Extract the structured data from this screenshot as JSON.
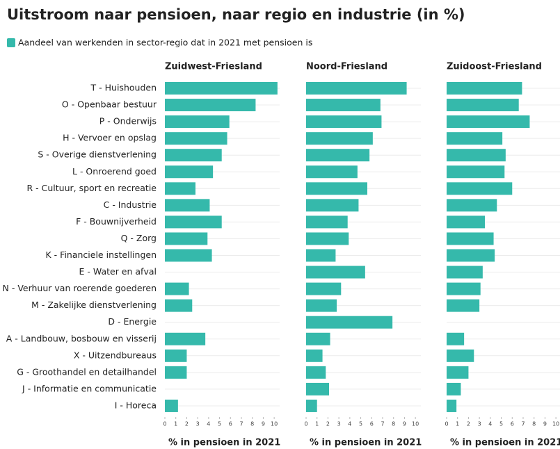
{
  "title": "Uitstroom naar pensioen, naar regio en industrie (in %)",
  "legend": {
    "label": "Aandeel van werkenden in sector-regio dat in 2021 met pensioen is",
    "color": "#35b9ab"
  },
  "categories": [
    "T - Huishouden",
    "O - Openbaar bestuur",
    "P - Onderwijs",
    "H - Vervoer en opslag",
    "S - Overige dienstverlening",
    "L - Onroerend goed",
    "R - Cultuur, sport en recreatie",
    "C - Industrie",
    "F - Bouwnijverheid",
    "Q - Zorg",
    "K - Financiele instellingen",
    "E - Water en afval",
    "N - Verhuur van roerende goederen",
    "M - Zakelijke dienstverlening",
    "D - Energie",
    "A - Landbouw, bosbouw en visserij",
    "X - Uitzendbureaus",
    "G - Groothandel en detailhandel",
    "J - Informatie en communicatie",
    "I - Horeca"
  ],
  "chart_data": [
    {
      "type": "hbar",
      "title": "Zuidwest-Friesland",
      "color": "#35b9ab",
      "xlabel": "% in pensioen in 2021",
      "values": [
        10.3,
        8.3,
        5.9,
        5.7,
        5.2,
        4.4,
        2.8,
        4.1,
        5.2,
        3.9,
        4.3,
        null,
        2.2,
        2.5,
        null,
        3.7,
        2.0,
        2.0,
        null,
        1.2
      ],
      "xlim": [
        0,
        10.5
      ],
      "xticks": [
        0,
        1,
        2,
        3,
        4,
        5,
        6,
        7,
        8,
        9,
        10
      ],
      "grid": true
    },
    {
      "type": "hbar",
      "title": "Noord-Friesland",
      "color": "#35b9ab",
      "xlabel": "% in pensioen in 2021",
      "values": [
        9.2,
        6.8,
        6.9,
        6.1,
        5.8,
        4.7,
        5.6,
        4.8,
        3.8,
        3.9,
        2.7,
        5.4,
        3.2,
        2.8,
        7.9,
        2.2,
        1.5,
        1.8,
        2.1,
        1.0
      ],
      "xlim": [
        0,
        10.5
      ],
      "xticks": [
        0,
        1,
        2,
        3,
        4,
        5,
        6,
        7,
        8,
        9,
        10
      ],
      "grid": true
    },
    {
      "type": "hbar",
      "title": "Zuidoost-Friesland",
      "color": "#35b9ab",
      "xlabel": "% in pensioen in 2021",
      "values": [
        6.9,
        6.6,
        7.6,
        5.1,
        5.4,
        5.3,
        6.0,
        4.6,
        3.5,
        4.3,
        4.4,
        3.3,
        3.1,
        3.0,
        null,
        1.6,
        2.5,
        2.0,
        1.3,
        0.9
      ],
      "xlim": [
        0,
        10.5
      ],
      "xticks": [
        0,
        1,
        2,
        3,
        4,
        5,
        6,
        7,
        8,
        9,
        10
      ],
      "grid": true
    }
  ]
}
